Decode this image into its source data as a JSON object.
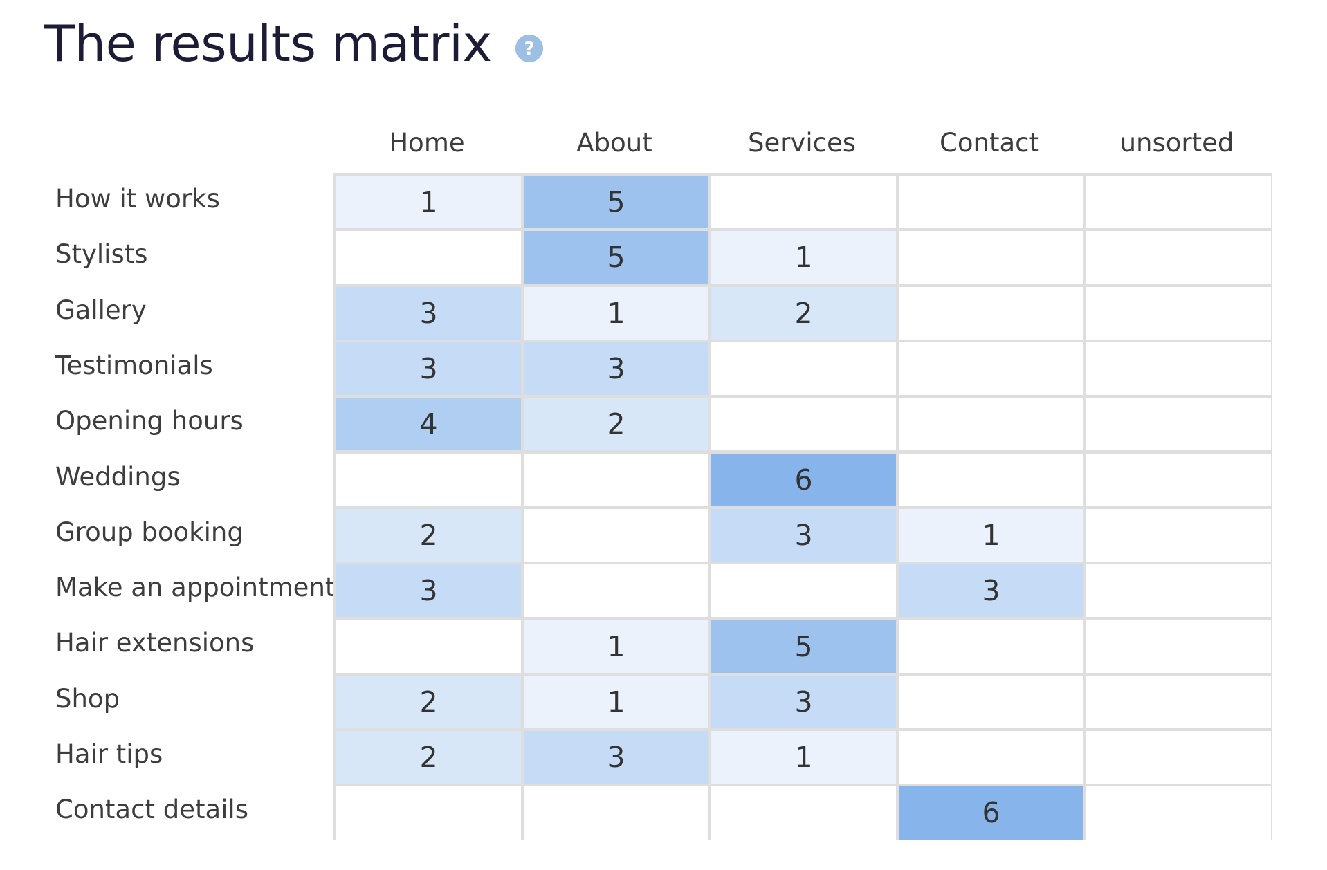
{
  "title": "The results matrix",
  "help_icon": "question-mark-icon",
  "colors": {
    "level_0": "#ffffff",
    "level_1": "#ebf2fb",
    "level_2": "#d8e7f8",
    "level_3": "#c6dbf5",
    "level_4": "#b0cef1",
    "level_5": "#9ec2ee",
    "level_6": "#87b4ea",
    "grid_line": "#dedede",
    "title": "#1c1c36",
    "help_icon": "#9dbfe4"
  },
  "columns": [
    "Home",
    "About",
    "Services",
    "Contact",
    "unsorted"
  ],
  "rows": [
    {
      "label": "How it works",
      "values": [
        1,
        5,
        null,
        null,
        null
      ]
    },
    {
      "label": "Stylists",
      "values": [
        null,
        5,
        1,
        null,
        null
      ]
    },
    {
      "label": "Gallery",
      "values": [
        3,
        1,
        2,
        null,
        null
      ]
    },
    {
      "label": "Testimonials",
      "values": [
        3,
        3,
        null,
        null,
        null
      ]
    },
    {
      "label": "Opening hours",
      "values": [
        4,
        2,
        null,
        null,
        null
      ]
    },
    {
      "label": "Weddings",
      "values": [
        null,
        null,
        6,
        null,
        null
      ]
    },
    {
      "label": "Group booking",
      "values": [
        2,
        null,
        3,
        1,
        null
      ]
    },
    {
      "label": "Make an appointment",
      "values": [
        3,
        null,
        null,
        3,
        null
      ]
    },
    {
      "label": "Hair extensions",
      "values": [
        null,
        1,
        5,
        null,
        null
      ]
    },
    {
      "label": "Shop",
      "values": [
        2,
        1,
        3,
        null,
        null
      ]
    },
    {
      "label": "Hair tips",
      "values": [
        2,
        3,
        1,
        null,
        null
      ]
    },
    {
      "label": "Contact details",
      "values": [
        null,
        null,
        null,
        6,
        null
      ]
    }
  ]
}
